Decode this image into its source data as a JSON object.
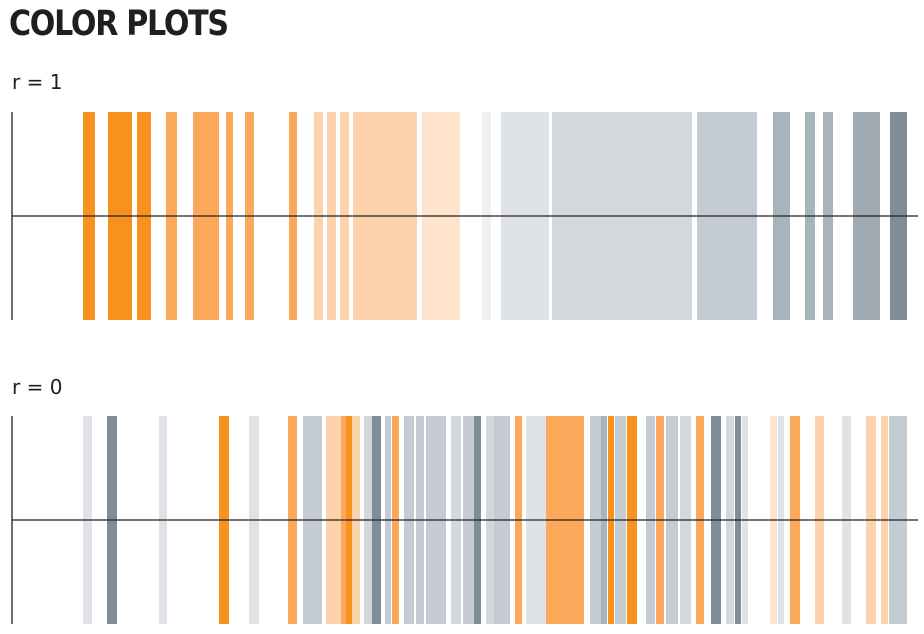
{
  "title": "COLOR PLOTS",
  "colors": {
    "orange_1": "#f7921f",
    "orange_2": "#fca85a",
    "orange_3": "#fdd3ad",
    "orange_4": "#fee4cc",
    "gray_0": "#eef0f2",
    "gray_1": "#dfe3e7",
    "gray_2": "#d2d8dc",
    "gray_3": "#c4cbd2",
    "gray_4": "#a8b4bb",
    "gray_5": "#9faab3",
    "gray_6": "#7f8d98",
    "axis": "#222222"
  },
  "chart_data": [
    {
      "type": "color-stripes",
      "label": "r = 1",
      "x_range": [
        0,
        924
      ],
      "stripes": [
        {
          "x0": 83,
          "x1": 95,
          "color": "orange_1"
        },
        {
          "x0": 108,
          "x1": 132,
          "color": "orange_1"
        },
        {
          "x0": 137,
          "x1": 151,
          "color": "orange_1"
        },
        {
          "x0": 166,
          "x1": 177,
          "color": "orange_2"
        },
        {
          "x0": 193,
          "x1": 219,
          "color": "orange_2"
        },
        {
          "x0": 226,
          "x1": 233,
          "color": "orange_2"
        },
        {
          "x0": 245,
          "x1": 254,
          "color": "orange_2"
        },
        {
          "x0": 289,
          "x1": 297,
          "color": "orange_2"
        },
        {
          "x0": 314,
          "x1": 323,
          "color": "orange_3"
        },
        {
          "x0": 327,
          "x1": 336,
          "color": "orange_3"
        },
        {
          "x0": 340,
          "x1": 349,
          "color": "orange_3"
        },
        {
          "x0": 353,
          "x1": 417,
          "color": "orange_3"
        },
        {
          "x0": 422,
          "x1": 460,
          "color": "orange_4"
        },
        {
          "x0": 482,
          "x1": 491,
          "color": "gray_0"
        },
        {
          "x0": 501,
          "x1": 549,
          "color": "gray_1"
        },
        {
          "x0": 552,
          "x1": 692,
          "color": "gray_2"
        },
        {
          "x0": 697,
          "x1": 757,
          "color": "gray_3"
        },
        {
          "x0": 773,
          "x1": 790,
          "color": "gray_4"
        },
        {
          "x0": 805,
          "x1": 815,
          "color": "gray_4"
        },
        {
          "x0": 823,
          "x1": 833,
          "color": "gray_4"
        },
        {
          "x0": 853,
          "x1": 880,
          "color": "gray_5"
        },
        {
          "x0": 890,
          "x1": 907,
          "color": "gray_6"
        }
      ]
    },
    {
      "type": "color-stripes",
      "label": "r = 0",
      "x_range": [
        0,
        924
      ],
      "stripes": [
        {
          "x0": 83,
          "x1": 92,
          "color": "gray_1"
        },
        {
          "x0": 107,
          "x1": 117,
          "color": "gray_6"
        },
        {
          "x0": 159,
          "x1": 167,
          "color": "gray_1"
        },
        {
          "x0": 219,
          "x1": 229,
          "color": "orange_1"
        },
        {
          "x0": 249,
          "x1": 259,
          "color": "gray_1"
        },
        {
          "x0": 288,
          "x1": 297,
          "color": "orange_2"
        },
        {
          "x0": 303,
          "x1": 322,
          "color": "gray_3"
        },
        {
          "x0": 326,
          "x1": 341,
          "color": "orange_3"
        },
        {
          "x0": 341,
          "x1": 346,
          "color": "orange_2"
        },
        {
          "x0": 346,
          "x1": 352,
          "color": "orange_1"
        },
        {
          "x0": 352,
          "x1": 360,
          "color": "orange_3"
        },
        {
          "x0": 364,
          "x1": 372,
          "color": "gray_2"
        },
        {
          "x0": 372,
          "x1": 381,
          "color": "gray_6"
        },
        {
          "x0": 385,
          "x1": 391,
          "color": "gray_3"
        },
        {
          "x0": 392,
          "x1": 399,
          "color": "orange_2"
        },
        {
          "x0": 404,
          "x1": 414,
          "color": "gray_3"
        },
        {
          "x0": 416,
          "x1": 424,
          "color": "gray_3"
        },
        {
          "x0": 426,
          "x1": 446,
          "color": "gray_3"
        },
        {
          "x0": 451,
          "x1": 461,
          "color": "gray_2"
        },
        {
          "x0": 463,
          "x1": 474,
          "color": "gray_3"
        },
        {
          "x0": 474,
          "x1": 481,
          "color": "gray_6"
        },
        {
          "x0": 486,
          "x1": 494,
          "color": "gray_2"
        },
        {
          "x0": 494,
          "x1": 510,
          "color": "gray_3"
        },
        {
          "x0": 515,
          "x1": 522,
          "color": "orange_2"
        },
        {
          "x0": 526,
          "x1": 546,
          "color": "gray_1"
        },
        {
          "x0": 546,
          "x1": 568,
          "color": "orange_2"
        },
        {
          "x0": 568,
          "x1": 584,
          "color": "orange_2"
        },
        {
          "x0": 590,
          "x1": 601,
          "color": "gray_3"
        },
        {
          "x0": 601,
          "x1": 607,
          "color": "gray_4"
        },
        {
          "x0": 608,
          "x1": 614,
          "color": "orange_1"
        },
        {
          "x0": 615,
          "x1": 626,
          "color": "gray_3"
        },
        {
          "x0": 627,
          "x1": 637,
          "color": "orange_1"
        },
        {
          "x0": 646,
          "x1": 655,
          "color": "gray_3"
        },
        {
          "x0": 656,
          "x1": 664,
          "color": "orange_2"
        },
        {
          "x0": 666,
          "x1": 678,
          "color": "gray_3"
        },
        {
          "x0": 680,
          "x1": 691,
          "color": "gray_2"
        },
        {
          "x0": 696,
          "x1": 704,
          "color": "orange_2"
        },
        {
          "x0": 711,
          "x1": 721,
          "color": "gray_6"
        },
        {
          "x0": 726,
          "x1": 734,
          "color": "gray_2"
        },
        {
          "x0": 735,
          "x1": 741,
          "color": "gray_6"
        },
        {
          "x0": 742,
          "x1": 748,
          "color": "gray_1"
        },
        {
          "x0": 770,
          "x1": 777,
          "color": "orange_4"
        },
        {
          "x0": 778,
          "x1": 784,
          "color": "gray_1"
        },
        {
          "x0": 790,
          "x1": 800,
          "color": "orange_2"
        },
        {
          "x0": 815,
          "x1": 824,
          "color": "orange_3"
        },
        {
          "x0": 842,
          "x1": 851,
          "color": "gray_1"
        },
        {
          "x0": 866,
          "x1": 876,
          "color": "orange_3"
        },
        {
          "x0": 881,
          "x1": 888,
          "color": "orange_3"
        },
        {
          "x0": 889,
          "x1": 907,
          "color": "gray_3"
        }
      ]
    }
  ]
}
